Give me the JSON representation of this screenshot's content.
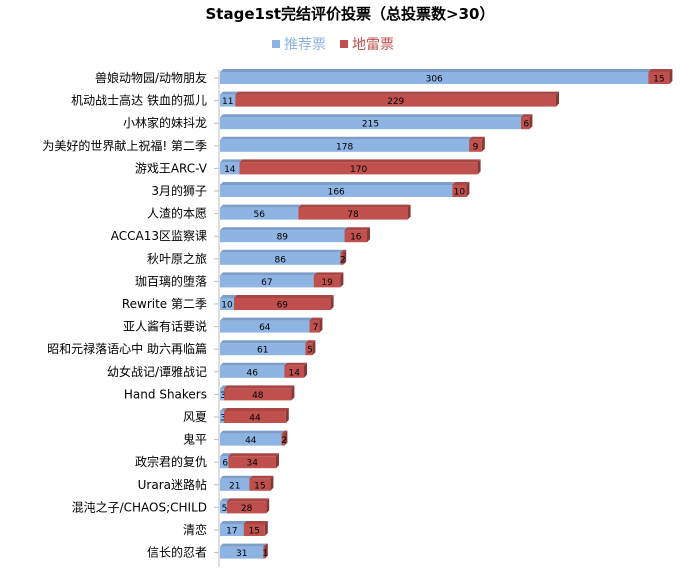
{
  "chart_data": {
    "type": "bar",
    "orientation": "horizontal",
    "stacked": true,
    "title": "Stage1st完结评价投票（总投票数>30）",
    "legend_position": "top",
    "grid": false,
    "categories": [
      "兽娘动物园/动物朋友",
      "机动战士高达 铁血的孤儿",
      "小林家的妹抖龙",
      "为美好的世界献上祝福! 第二季",
      "游戏王ARC-V",
      "3月的狮子",
      "人渣的本愿",
      "ACCA13区监察课",
      "秋叶原之旅",
      "珈百璃的堕落",
      "Rewrite 第二季",
      "亚人酱有话要说",
      "昭和元禄落语心中 助六再临篇",
      "幼女战记/谭雅战记",
      "Hand Shakers",
      "风夏",
      "鬼平",
      "政宗君的复仇",
      "Urara迷路帖",
      "混沌之子/CHAOS;CHILD",
      "清恋",
      "信长的忍者"
    ],
    "series": [
      {
        "name": "推荐票",
        "color": "#8EB4E3",
        "values": [
          306,
          11,
          215,
          178,
          14,
          166,
          56,
          89,
          86,
          67,
          10,
          64,
          61,
          46,
          3,
          3,
          44,
          6,
          21,
          5,
          17,
          31
        ]
      },
      {
        "name": "地雷票",
        "color": "#C0504D",
        "values": [
          15,
          229,
          6,
          9,
          170,
          10,
          78,
          16,
          2,
          19,
          69,
          7,
          5,
          14,
          48,
          44,
          2,
          34,
          15,
          28,
          15,
          1
        ]
      }
    ],
    "xlim": [
      0,
      325
    ]
  }
}
